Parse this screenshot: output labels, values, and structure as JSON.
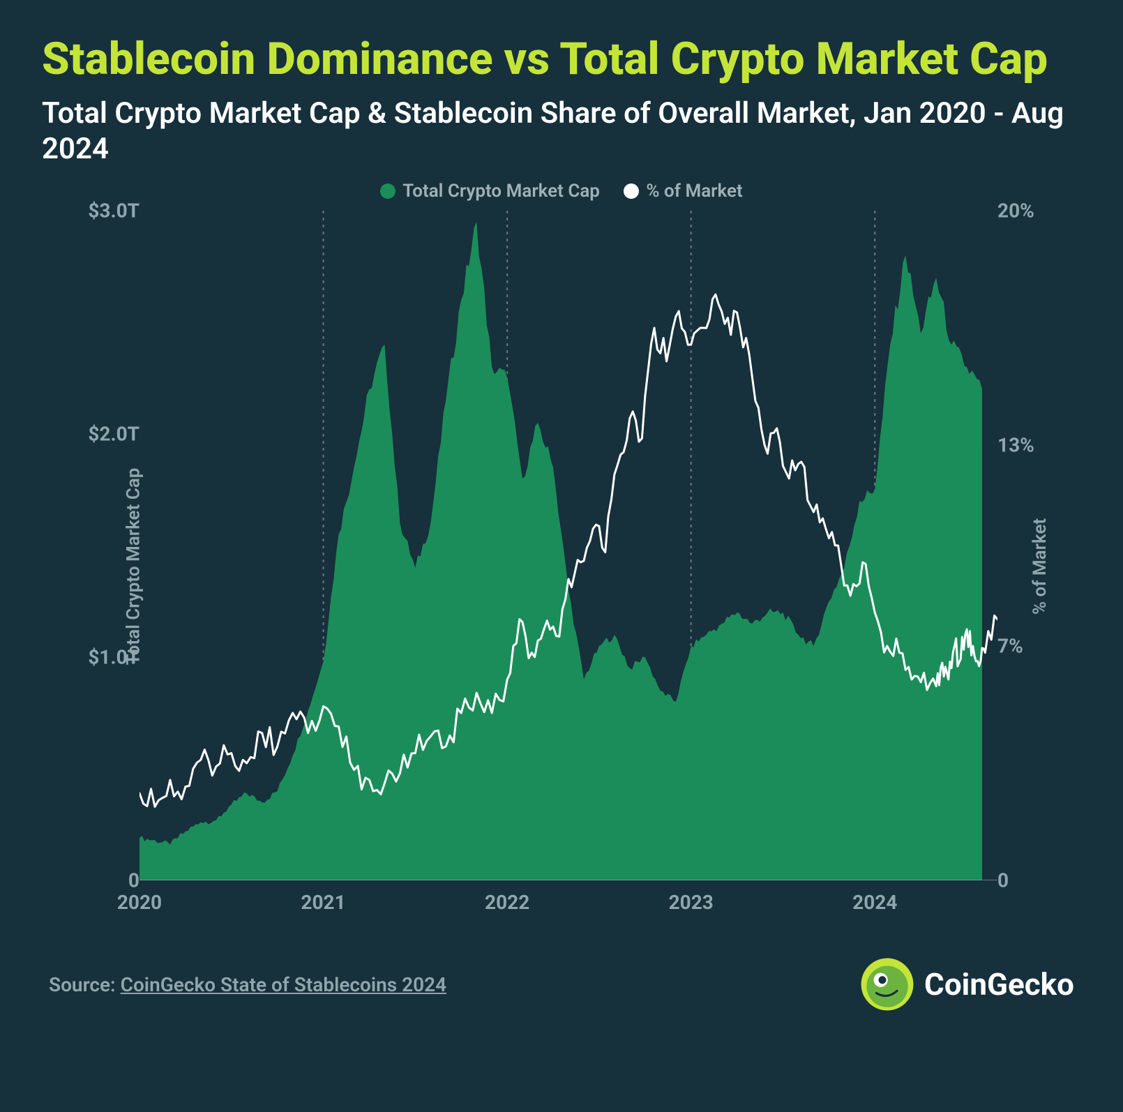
{
  "title": "Stablecoin Dominance vs Total Crypto Market Cap",
  "subtitle": "Total Crypto Market Cap & Stablecoin Share of Overall Market, Jan 2020 - Aug 2024",
  "legend": {
    "series1": {
      "label": "Total Crypto Market Cap",
      "color": "#1b8d5a"
    },
    "series2": {
      "label": "% of Market",
      "color": "#ffffff"
    }
  },
  "chart": {
    "type": "combo-area-line",
    "background_color": "#16303c",
    "grid_color": "#a8b8bd",
    "grid_dash": "4,6",
    "area_color": "#1b8d5a",
    "line_color": "#ffffff",
    "line_width": 3,
    "x_axis": {
      "domain": [
        0,
        56
      ],
      "ticks": [
        {
          "pos": 0,
          "label": "2020"
        },
        {
          "pos": 12,
          "label": "2021"
        },
        {
          "pos": 24,
          "label": "2022"
        },
        {
          "pos": 36,
          "label": "2023"
        },
        {
          "pos": 48,
          "label": "2024"
        }
      ],
      "year_lines": [
        12,
        24,
        36,
        48
      ]
    },
    "y_left": {
      "label": "Total Crypto Market Cap",
      "domain": [
        0,
        3.0
      ],
      "ticks": [
        {
          "val": 0,
          "label": "0"
        },
        {
          "val": 1.0,
          "label": "$1.0T"
        },
        {
          "val": 2.0,
          "label": "$2.0T"
        },
        {
          "val": 3.0,
          "label": "$3.0T"
        }
      ],
      "label_color": "#8fa6ad",
      "label_fontsize": 26
    },
    "y_right": {
      "label": "% of Market",
      "domain": [
        0,
        20
      ],
      "ticks": [
        {
          "val": 0,
          "label": "0"
        },
        {
          "val": 7,
          "label": "7%"
        },
        {
          "val": 13,
          "label": "13%"
        },
        {
          "val": 20,
          "label": "20%"
        }
      ],
      "label_color": "#8fa6ad",
      "label_fontsize": 26
    },
    "market_cap_T": [
      0.19,
      0.18,
      0.16,
      0.22,
      0.26,
      0.27,
      0.34,
      0.39,
      0.35,
      0.4,
      0.56,
      0.76,
      0.98,
      1.55,
      1.85,
      2.2,
      2.4,
      1.6,
      1.4,
      1.6,
      2.15,
      2.6,
      2.95,
      2.3,
      2.25,
      1.8,
      2.05,
      1.85,
      1.3,
      0.9,
      1.05,
      1.1,
      0.95,
      1.0,
      0.85,
      0.8,
      1.05,
      1.1,
      1.15,
      1.2,
      1.15,
      1.2,
      1.2,
      1.1,
      1.05,
      1.25,
      1.4,
      1.7,
      1.75,
      2.4,
      2.8,
      2.45,
      2.7,
      2.4,
      2.3,
      2.2
    ],
    "pct_of_market": [
      2.6,
      2.2,
      3.0,
      2.8,
      3.6,
      3.4,
      3.8,
      3.5,
      4.4,
      4.0,
      5.0,
      4.4,
      5.2,
      4.6,
      3.3,
      3.0,
      2.9,
      3.2,
      3.8,
      4.3,
      4.0,
      5.0,
      5.6,
      5.0,
      6.0,
      7.8,
      6.8,
      7.5,
      7.3,
      9.0,
      9.5,
      10.5,
      9.8,
      12.4,
      13.8,
      13.2,
      16.5,
      15.5,
      17.0,
      16.0,
      16.5,
      17.5,
      16.8,
      16.5,
      15.0,
      13.0,
      13.5,
      12.0,
      12.5,
      11.0,
      10.5,
      10.0,
      8.5,
      9.5,
      8.0,
      7.0,
      6.8,
      6.0,
      6.2,
      5.8,
      6.5,
      6.0,
      7.0,
      6.6,
      7.5,
      7.0,
      6.4,
      6.8,
      7.8
    ],
    "pct_x_positions": [
      0,
      1,
      2,
      3,
      4,
      5,
      6,
      7,
      8,
      9,
      10,
      11,
      12,
      13,
      14,
      15,
      16,
      17,
      18,
      19,
      20,
      21,
      22,
      23,
      24,
      24.8,
      25.6,
      26.4,
      27.2,
      28,
      28.8,
      29.6,
      30.4,
      31.2,
      32,
      32.8,
      33.6,
      34.4,
      35.2,
      36,
      36.8,
      37.6,
      38.4,
      39.2,
      40,
      40.8,
      41.6,
      42.4,
      43.2,
      44,
      44.8,
      45.6,
      46.4,
      47.2,
      48,
      48.8,
      49.6,
      50.4,
      51.2,
      52,
      52.4,
      52.8,
      53.2,
      53.6,
      54,
      54.4,
      54.8,
      55.2,
      56
    ]
  },
  "source": {
    "prefix": "Source:",
    "link_text": "CoinGecko State of Stablecoins 2024"
  },
  "brand": {
    "name": "CoinGecko",
    "logo_bg": "#c4e538",
    "logo_body": "#6db33f"
  }
}
